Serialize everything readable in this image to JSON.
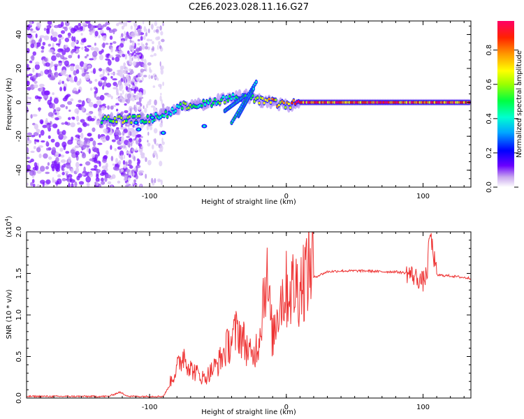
{
  "title": "C2E6.2023.028.11.16.G27",
  "chart_data": [
    {
      "type": "heatmap",
      "xlabel": "Height of straight line (km)",
      "ylabel": "Frequency (Hz)",
      "xlim": [
        -190,
        135
      ],
      "ylim": [
        -50,
        48
      ],
      "xticks": [
        -100,
        0,
        100
      ],
      "yticks": [
        -40,
        -20,
        0,
        20,
        40
      ],
      "colorbar": {
        "label": "Normalized spectral amplitude",
        "range": [
          0,
          0.97
        ],
        "ticks": [
          "0.0",
          "0.2",
          "0.4",
          "0.6",
          "0.8"
        ],
        "colormap": [
          "#ffffff",
          "#b47fe0",
          "#6a00ff",
          "#0000ff",
          "#00c8ff",
          "#00ff80",
          "#66ff00",
          "#ffff00",
          "#ff8c00",
          "#ff0000",
          "#ff0066"
        ]
      },
      "main_track": [
        {
          "x": -135,
          "y": -10,
          "amp": 0.55
        },
        {
          "x": -120,
          "y": -10,
          "amp": 0.6
        },
        {
          "x": -100,
          "y": -10,
          "amp": 0.5
        },
        {
          "x": -85,
          "y": -6,
          "amp": 0.4
        },
        {
          "x": -75,
          "y": -2,
          "amp": 0.5
        },
        {
          "x": -60,
          "y": -1,
          "amp": 0.45
        },
        {
          "x": -45,
          "y": 2,
          "amp": 0.5
        },
        {
          "x": -30,
          "y": 4,
          "amp": 0.45
        },
        {
          "x": -20,
          "y": 1,
          "amp": 0.7
        },
        {
          "x": -10,
          "y": 0,
          "amp": 0.75
        },
        {
          "x": 0,
          "y": -2,
          "amp": 0.7
        },
        {
          "x": 10,
          "y": 0,
          "amp": 0.85
        },
        {
          "x": 135,
          "y": 0,
          "amp": 0.85
        }
      ]
    },
    {
      "type": "line",
      "xlabel": "Height of straight line (km)",
      "ylabel": "SNR (10 * v/v)",
      "scale_label": "(x10",
      "scale_exp": "4",
      "xlim": [
        -190,
        135
      ],
      "ylim": [
        0,
        2.0
      ],
      "xticks": [
        -100,
        0,
        100
      ],
      "yticks": [
        "0.0",
        "0.5",
        "1.0",
        "1.5",
        "2.0"
      ],
      "color": "#ee3333",
      "series": [
        {
          "x": [
            -190,
            -130,
            -122,
            -115,
            -90,
            -80,
            -75,
            -70,
            -65,
            -60,
            -50,
            -40,
            -35,
            -30,
            -25,
            -20,
            -15,
            -10,
            -5,
            0,
            10,
            20,
            30,
            40,
            50,
            60,
            70,
            80,
            90,
            95,
            100,
            103,
            105,
            110,
            120,
            135
          ],
          "y": [
            0.02,
            0.02,
            0.07,
            0.02,
            0.02,
            0.3,
            0.45,
            0.3,
            0.25,
            0.2,
            0.35,
            0.6,
            0.7,
            0.55,
            0.4,
            0.6,
            1.3,
            0.6,
            1.0,
            1.1,
            1.15,
            1.45,
            1.52,
            1.53,
            1.53,
            1.53,
            1.52,
            1.52,
            1.5,
            1.45,
            1.4,
            1.5,
            2.0,
            1.48,
            1.47,
            1.44
          ]
        }
      ]
    }
  ]
}
